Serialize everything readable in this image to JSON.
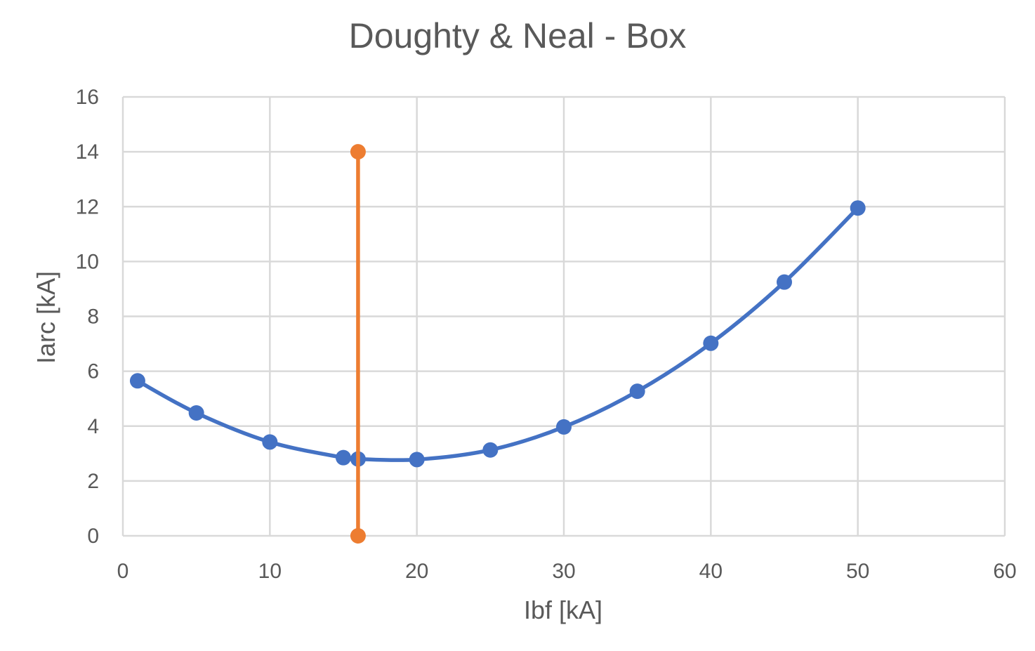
{
  "chart_data": {
    "type": "scatter",
    "title": "Doughty & Neal - Box",
    "xlabel": "Ibf [kA]",
    "ylabel": "Iarc [kA]",
    "xlim": [
      0,
      60
    ],
    "ylim": [
      0,
      16
    ],
    "x_ticks": [
      "0",
      "10",
      "20",
      "30",
      "40",
      "50",
      "60"
    ],
    "y_ticks": [
      "0",
      "2",
      "4",
      "6",
      "8",
      "10",
      "12",
      "14",
      "16"
    ],
    "grid": true,
    "legend": "none",
    "series": [
      {
        "color": "#4472C4",
        "smooth": true,
        "x": [
          1,
          5,
          10,
          15,
          16,
          20,
          25,
          30,
          35,
          40,
          45,
          50
        ],
        "y": [
          5.65,
          4.48,
          3.42,
          2.85,
          2.8,
          2.78,
          3.13,
          3.97,
          5.27,
          7.02,
          9.25,
          11.95
        ]
      },
      {
        "color": "#ED7D31",
        "smooth": false,
        "x": [
          16,
          16
        ],
        "y": [
          0,
          14
        ]
      }
    ]
  }
}
